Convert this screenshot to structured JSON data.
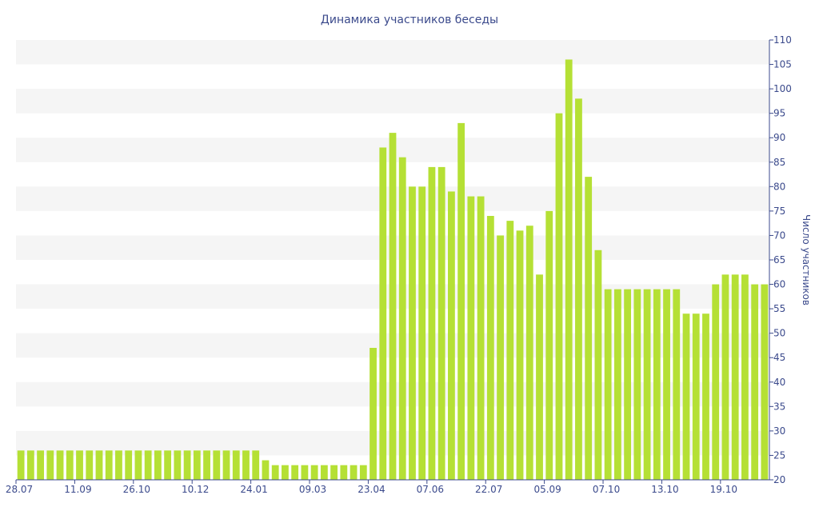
{
  "chart_data": {
    "type": "bar",
    "title": "Динамика участников беседы",
    "xlabel": "",
    "ylabel": "Число участников",
    "ylim": [
      20,
      110
    ],
    "y_tick_step": 5,
    "y_axis_position": "right",
    "grid": "horizontal alternating bands",
    "x_tick_labels": [
      {
        "label": "28.07",
        "index": 0
      },
      {
        "label": "11.09",
        "index": 6
      },
      {
        "label": "26.10",
        "index": 12
      },
      {
        "label": "10.12",
        "index": 18
      },
      {
        "label": "24.01",
        "index": 24
      },
      {
        "label": "09.03",
        "index": 30
      },
      {
        "label": "23.04",
        "index": 36
      },
      {
        "label": "07.06",
        "index": 42
      },
      {
        "label": "22.07",
        "index": 48
      },
      {
        "label": "05.09",
        "index": 54
      },
      {
        "label": "07.10",
        "index": 60
      },
      {
        "label": "13.10",
        "index": 66
      },
      {
        "label": "19.10",
        "index": 72
      }
    ],
    "values": [
      26,
      26,
      26,
      26,
      26,
      26,
      26,
      26,
      26,
      26,
      26,
      26,
      26,
      26,
      26,
      26,
      26,
      26,
      26,
      26,
      26,
      26,
      26,
      26,
      26,
      24,
      23,
      23,
      23,
      23,
      23,
      23,
      23,
      23,
      23,
      23,
      47,
      88,
      91,
      86,
      80,
      80,
      84,
      84,
      79,
      93,
      78,
      78,
      74,
      70,
      73,
      71,
      72,
      62,
      75,
      95,
      106,
      98,
      82,
      67,
      59,
      59,
      59,
      59,
      59,
      59,
      59,
      59,
      54,
      54,
      54,
      60,
      62,
      62,
      62,
      60,
      60
    ],
    "bar_color": "#b5e035",
    "band_color": "#f5f5f5",
    "text_color": "#3b4a8c"
  }
}
